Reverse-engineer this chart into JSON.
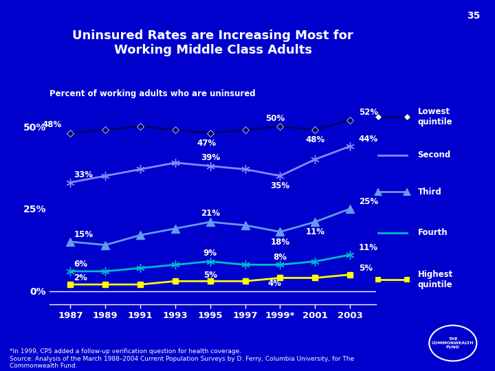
{
  "title": "Uninsured Rates are Increasing Most for\nWorking Middle Class Adults",
  "subtitle": "Percent of working adults who are uninsured",
  "page_number": "35",
  "background_color": "#0000CC",
  "years": [
    1987,
    1989,
    1991,
    1993,
    1995,
    1997,
    1999,
    2001,
    2003
  ],
  "year_labels": [
    "1987",
    "1989",
    "1991",
    "1993",
    "1995",
    "1997",
    "1999*",
    "2001",
    "2003"
  ],
  "lowest": [
    48,
    49,
    50,
    49,
    48,
    49,
    50,
    49,
    52
  ],
  "second": [
    33,
    35,
    37,
    39,
    38,
    37,
    35,
    40,
    44
  ],
  "third": [
    15,
    14,
    17,
    19,
    21,
    20,
    18,
    21,
    25
  ],
  "fourth": [
    6,
    6,
    7,
    8,
    9,
    8,
    8,
    9,
    11
  ],
  "highest": [
    2,
    2,
    2,
    3,
    3,
    3,
    4,
    4,
    5
  ],
  "colors": {
    "lowest": "#000066",
    "second": "#8888ff",
    "third": "#6699ee",
    "fourth": "#00bbcc",
    "highest": "#ffff00"
  },
  "footer": "*In 1999, CPS added a follow-up verification question for health coverage.\nSource: Analysis of the March 1988–2004 Current Population Surveys by D. Ferry, Columbia University, for The\nCommonwealth Fund."
}
